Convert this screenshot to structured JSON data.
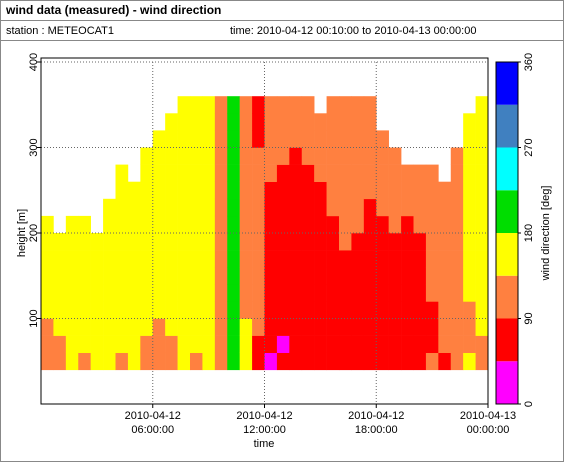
{
  "header": {
    "title": "wind data (measured) - wind direction",
    "station": "station : METEOCAT1",
    "time": "time: 2010-04-12 00:10:00 to 2010-04-13 00:00:00"
  },
  "chart_data": {
    "type": "heatmap",
    "xlabel": "time",
    "ylabel": "height [m]",
    "xlim": [
      "2010-04-12 00:00:00",
      "2010-04-13 00:00:00"
    ],
    "xticks": [
      {
        "value": "2010-04-12 06:00:00",
        "label": "2010-04-12\n06:00:00"
      },
      {
        "value": "2010-04-12 12:00:00",
        "label": "2010-04-12\n12:00:00"
      },
      {
        "value": "2010-04-12 18:00:00",
        "label": "2010-04-12\n18:00:00"
      },
      {
        "value": "2010-04-13 00:00:00",
        "label": "2010-04-13\n00:00:00"
      }
    ],
    "ylim": [
      0,
      400
    ],
    "yticks": [
      100,
      200,
      300,
      400
    ],
    "grid": true,
    "cell_height": 20,
    "x": [
      "2010-04-12 00:00:00",
      "2010-04-12 00:40:00",
      "2010-04-12 01:20:00",
      "2010-04-12 02:00:00",
      "2010-04-12 02:40:00",
      "2010-04-12 03:20:00",
      "2010-04-12 04:00:00",
      "2010-04-12 04:40:00",
      "2010-04-12 05:20:00",
      "2010-04-12 06:00:00",
      "2010-04-12 06:40:00",
      "2010-04-12 07:20:00",
      "2010-04-12 08:00:00",
      "2010-04-12 08:40:00",
      "2010-04-12 09:20:00",
      "2010-04-12 10:00:00",
      "2010-04-12 10:40:00",
      "2010-04-12 11:20:00",
      "2010-04-12 12:00:00",
      "2010-04-12 12:40:00",
      "2010-04-12 13:20:00",
      "2010-04-12 14:00:00",
      "2010-04-12 14:40:00",
      "2010-04-12 15:20:00",
      "2010-04-12 16:00:00",
      "2010-04-12 16:40:00",
      "2010-04-12 17:20:00",
      "2010-04-12 18:00:00",
      "2010-04-12 18:40:00",
      "2010-04-12 19:20:00",
      "2010-04-12 20:00:00",
      "2010-04-12 20:40:00",
      "2010-04-12 21:20:00",
      "2010-04-12 22:00:00",
      "2010-04-12 22:40:00",
      "2010-04-12 23:20:00"
    ],
    "y": [
      40,
      60,
      80,
      100,
      120,
      140,
      160,
      180,
      200,
      220,
      240,
      260,
      280,
      300,
      320,
      340
    ],
    "values": [
      [
        110,
        110,
        110,
        160,
        160,
        160,
        160,
        160,
        160,
        null,
        null,
        null,
        null,
        null,
        null,
        null
      ],
      [
        110,
        110,
        160,
        160,
        160,
        160,
        160,
        160,
        null,
        null,
        null,
        null,
        null,
        null,
        null,
        null
      ],
      [
        160,
        160,
        160,
        160,
        160,
        160,
        160,
        160,
        160,
        null,
        null,
        null,
        null,
        null,
        null,
        null
      ],
      [
        110,
        160,
        160,
        160,
        160,
        160,
        160,
        160,
        160,
        null,
        null,
        null,
        null,
        null,
        null,
        null
      ],
      [
        160,
        160,
        160,
        160,
        160,
        160,
        160,
        160,
        null,
        null,
        null,
        null,
        null,
        null,
        null,
        null
      ],
      [
        160,
        160,
        160,
        160,
        160,
        160,
        160,
        160,
        160,
        160,
        null,
        null,
        null,
        null,
        null,
        null
      ],
      [
        110,
        160,
        160,
        160,
        160,
        160,
        160,
        160,
        160,
        160,
        160,
        160,
        null,
        null,
        null,
        null
      ],
      [
        160,
        160,
        160,
        160,
        160,
        160,
        160,
        160,
        160,
        160,
        160,
        null,
        null,
        null,
        null,
        null
      ],
      [
        110,
        110,
        160,
        160,
        160,
        160,
        160,
        160,
        160,
        160,
        160,
        160,
        160,
        null,
        null,
        null
      ],
      [
        110,
        110,
        110,
        160,
        160,
        160,
        160,
        160,
        160,
        160,
        160,
        160,
        160,
        160,
        null,
        null
      ],
      [
        110,
        110,
        160,
        160,
        160,
        160,
        160,
        160,
        160,
        160,
        160,
        160,
        160,
        160,
        160,
        null
      ],
      [
        160,
        160,
        160,
        160,
        160,
        160,
        160,
        160,
        160,
        160,
        160,
        160,
        160,
        160,
        160,
        160
      ],
      [
        110,
        160,
        160,
        160,
        160,
        160,
        160,
        160,
        160,
        160,
        160,
        160,
        160,
        160,
        160,
        160
      ],
      [
        160,
        160,
        160,
        160,
        160,
        160,
        160,
        160,
        160,
        160,
        160,
        160,
        160,
        160,
        160,
        160
      ],
      [
        110,
        110,
        110,
        110,
        110,
        110,
        110,
        110,
        110,
        110,
        110,
        110,
        110,
        110,
        110,
        110
      ],
      [
        200,
        200,
        200,
        200,
        200,
        200,
        200,
        200,
        200,
        200,
        200,
        200,
        200,
        200,
        200,
        200
      ],
      [
        160,
        160,
        160,
        110,
        110,
        110,
        110,
        110,
        110,
        110,
        110,
        110,
        110,
        110,
        110,
        110
      ],
      [
        70,
        70,
        110,
        110,
        110,
        110,
        110,
        110,
        110,
        110,
        110,
        110,
        110,
        70,
        70,
        70
      ],
      [
        20,
        70,
        70,
        70,
        70,
        70,
        70,
        70,
        70,
        70,
        70,
        110,
        110,
        110,
        110,
        110
      ],
      [
        70,
        20,
        70,
        70,
        70,
        70,
        70,
        70,
        70,
        70,
        70,
        70,
        110,
        110,
        110,
        110
      ],
      [
        70,
        70,
        70,
        70,
        70,
        70,
        70,
        70,
        70,
        70,
        70,
        70,
        70,
        110,
        110,
        110
      ],
      [
        70,
        70,
        70,
        70,
        70,
        70,
        70,
        70,
        70,
        70,
        70,
        70,
        110,
        110,
        110,
        110
      ],
      [
        70,
        70,
        70,
        70,
        70,
        70,
        70,
        70,
        70,
        70,
        70,
        110,
        110,
        110,
        110,
        null
      ],
      [
        70,
        70,
        70,
        70,
        70,
        70,
        70,
        70,
        70,
        110,
        110,
        110,
        110,
        110,
        110,
        110
      ],
      [
        70,
        70,
        70,
        70,
        70,
        70,
        70,
        110,
        110,
        110,
        110,
        110,
        110,
        110,
        110,
        110
      ],
      [
        70,
        70,
        70,
        70,
        70,
        70,
        70,
        70,
        110,
        110,
        110,
        110,
        110,
        110,
        110,
        110
      ],
      [
        70,
        70,
        70,
        70,
        70,
        70,
        70,
        70,
        70,
        70,
        110,
        110,
        110,
        110,
        110,
        110
      ],
      [
        70,
        70,
        70,
        70,
        70,
        70,
        70,
        70,
        70,
        110,
        110,
        110,
        110,
        110,
        null,
        null
      ],
      [
        70,
        70,
        70,
        70,
        70,
        70,
        70,
        70,
        110,
        110,
        110,
        110,
        110,
        null,
        null,
        null
      ],
      [
        70,
        70,
        70,
        70,
        70,
        70,
        70,
        70,
        70,
        110,
        110,
        110,
        null,
        null,
        null,
        null
      ],
      [
        70,
        70,
        70,
        70,
        70,
        70,
        70,
        70,
        110,
        110,
        110,
        110,
        null,
        null,
        null,
        null
      ],
      [
        110,
        70,
        70,
        70,
        110,
        110,
        110,
        110,
        110,
        110,
        110,
        110,
        null,
        null,
        null,
        null
      ],
      [
        70,
        110,
        110,
        110,
        110,
        110,
        110,
        110,
        110,
        110,
        110,
        null,
        null,
        null,
        null,
        null
      ],
      [
        110,
        110,
        110,
        110,
        110,
        110,
        110,
        110,
        110,
        110,
        110,
        110,
        110,
        null,
        null,
        null
      ],
      [
        160,
        110,
        110,
        110,
        160,
        160,
        160,
        160,
        160,
        160,
        160,
        160,
        160,
        160,
        160,
        null
      ],
      [
        110,
        110,
        160,
        160,
        160,
        160,
        160,
        160,
        160,
        160,
        160,
        160,
        160,
        160,
        160,
        160
      ]
    ],
    "colorbar": {
      "label": "wind direction [deg]",
      "lim": [
        0,
        360
      ],
      "ticks": [
        0,
        90,
        180,
        270,
        360
      ],
      "bounds": [
        0,
        45,
        90,
        135,
        180,
        225,
        270,
        315,
        360
      ],
      "colors": [
        "#ff00ff",
        "#ff0000",
        "#ff8040",
        "#ffff00",
        "#00dd00",
        "#00ffff",
        "#4080c0",
        "#0000ff"
      ]
    }
  }
}
